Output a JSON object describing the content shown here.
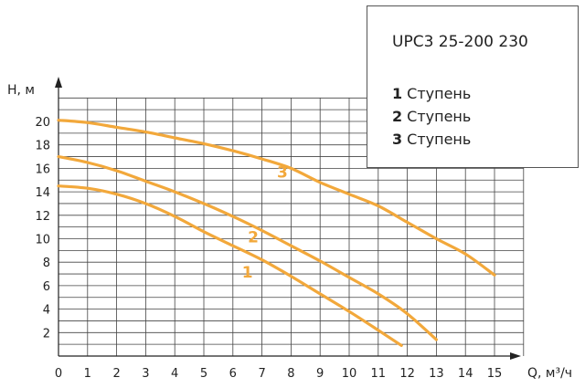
{
  "chart_data": {
    "type": "line",
    "title": "UPC3 25-200 230",
    "ylabel": "H, м",
    "xlabel": "Q, м³/ч",
    "xlim": [
      0,
      16
    ],
    "ylim": [
      0,
      22
    ],
    "x_ticks": [
      "0",
      "1",
      "2",
      "3",
      "4",
      "5",
      "6",
      "7",
      "8",
      "9",
      "10",
      "11",
      "12",
      "13",
      "14",
      "15"
    ],
    "y_ticks": [
      "2",
      "4",
      "6",
      "8",
      "10",
      "12",
      "14",
      "16",
      "18",
      "20"
    ],
    "grid": true,
    "legend_position": "top-right",
    "color": "#F2A83B",
    "series": [
      {
        "name": "Ступень",
        "label": "1",
        "x": [
          0,
          1,
          2,
          3,
          4,
          5,
          6,
          7,
          8,
          9,
          10,
          11,
          11.8
        ],
        "y": [
          14.5,
          14.3,
          13.8,
          13.0,
          11.9,
          10.6,
          9.4,
          8.2,
          6.8,
          5.3,
          3.8,
          2.2,
          0.9
        ]
      },
      {
        "name": "Ступень",
        "label": "2",
        "x": [
          0,
          1,
          2,
          3,
          4,
          5,
          6,
          7,
          8,
          9,
          10,
          11,
          12,
          13
        ],
        "y": [
          17.0,
          16.5,
          15.8,
          14.9,
          14.0,
          13.0,
          11.9,
          10.7,
          9.4,
          8.1,
          6.7,
          5.3,
          3.6,
          1.4
        ]
      },
      {
        "name": "Ступень",
        "label": "3",
        "x": [
          0,
          1,
          2,
          3,
          4,
          5,
          6,
          7,
          8,
          9,
          10,
          11,
          12,
          13,
          14,
          15
        ],
        "y": [
          20.1,
          19.9,
          19.5,
          19.1,
          18.6,
          18.1,
          17.5,
          16.8,
          16.0,
          14.8,
          13.8,
          12.8,
          11.4,
          10.0,
          8.7,
          6.9
        ]
      }
    ]
  }
}
